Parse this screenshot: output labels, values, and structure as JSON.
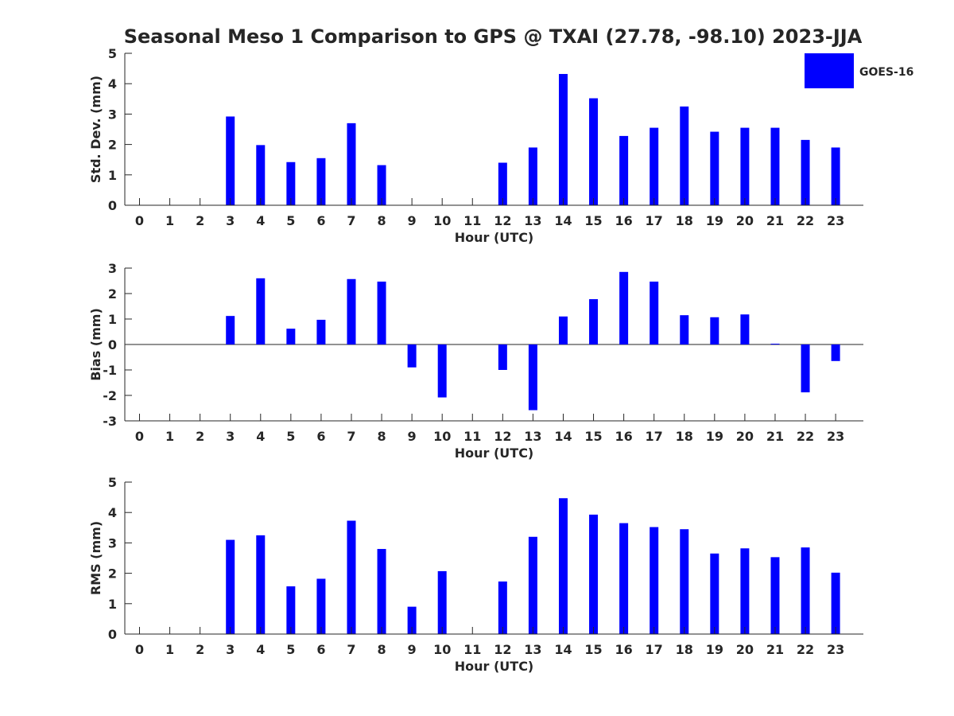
{
  "figure": {
    "title": "Seasonal Meso 1 Comparison to GPS @ TXAI (27.78, -98.10) 2023-JJA",
    "legend": {
      "label": "GOES-16",
      "color": "#0000ff",
      "placement": "top-right"
    }
  },
  "chart_data": [
    {
      "type": "bar",
      "title": "Seasonal Meso 1 Comparison to GPS @ TXAI (27.78, -98.10) 2023-JJA",
      "xlabel": "Hour (UTC)",
      "ylabel": "Std. Dev. (mm)",
      "categories": [
        "0",
        "1",
        "2",
        "3",
        "4",
        "5",
        "6",
        "7",
        "8",
        "9",
        "10",
        "11",
        "12",
        "13",
        "14",
        "15",
        "16",
        "17",
        "18",
        "19",
        "20",
        "21",
        "22",
        "23"
      ],
      "series": [
        {
          "name": "GOES-16",
          "color": "#0000ff",
          "values": [
            null,
            null,
            null,
            2.92,
            1.98,
            1.42,
            1.55,
            2.7,
            1.32,
            null,
            null,
            null,
            1.4,
            1.9,
            4.32,
            3.52,
            2.28,
            2.55,
            3.25,
            2.42,
            2.55,
            2.55,
            2.15,
            1.9
          ]
        }
      ],
      "ylim": [
        0,
        5
      ],
      "yticks": [
        0,
        1,
        2,
        3,
        4,
        5
      ],
      "grid": false,
      "legend": "top-right"
    },
    {
      "type": "bar",
      "xlabel": "Hour (UTC)",
      "ylabel": "Bias (mm)",
      "categories": [
        "0",
        "1",
        "2",
        "3",
        "4",
        "5",
        "6",
        "7",
        "8",
        "9",
        "10",
        "11",
        "12",
        "13",
        "14",
        "15",
        "16",
        "17",
        "18",
        "19",
        "20",
        "21",
        "22",
        "23"
      ],
      "series": [
        {
          "color": "#0000ff",
          "values": [
            null,
            null,
            null,
            1.12,
            2.6,
            0.62,
            0.97,
            2.57,
            2.47,
            -0.9,
            -2.08,
            null,
            -1.0,
            -2.58,
            1.1,
            1.78,
            2.85,
            2.47,
            1.15,
            1.07,
            1.18,
            0.03,
            -1.88,
            -0.65
          ]
        }
      ],
      "ylim": [
        -3,
        3
      ],
      "yticks": [
        -3,
        -2,
        -1,
        0,
        1,
        2,
        3
      ],
      "zero_line": true,
      "grid": false
    },
    {
      "type": "bar",
      "xlabel": "Hour (UTC)",
      "ylabel": "RMS (mm)",
      "categories": [
        "0",
        "1",
        "2",
        "3",
        "4",
        "5",
        "6",
        "7",
        "8",
        "9",
        "10",
        "11",
        "12",
        "13",
        "14",
        "15",
        "16",
        "17",
        "18",
        "19",
        "20",
        "21",
        "22",
        "23"
      ],
      "series": [
        {
          "color": "#0000ff",
          "values": [
            null,
            null,
            null,
            3.1,
            3.25,
            1.57,
            1.82,
            3.73,
            2.8,
            0.9,
            2.07,
            null,
            1.73,
            3.2,
            4.47,
            3.93,
            3.65,
            3.52,
            3.45,
            2.65,
            2.82,
            2.53,
            2.85,
            2.02
          ]
        }
      ],
      "ylim": [
        0,
        5
      ],
      "yticks": [
        0,
        1,
        2,
        3,
        4,
        5
      ],
      "grid": false
    }
  ]
}
